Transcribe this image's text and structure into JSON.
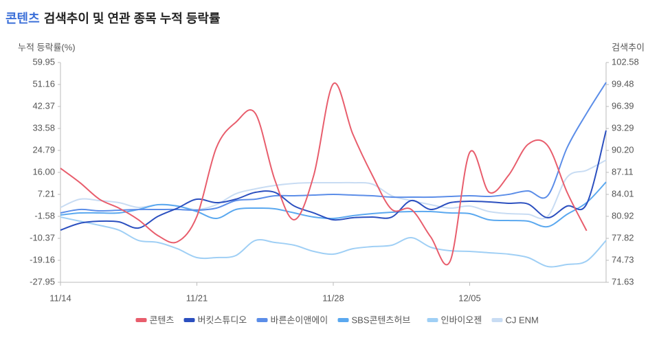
{
  "chart_data": {
    "type": "line",
    "title_keyword": "콘텐츠",
    "title": "검색추이 및 연관 종목 누적 등락률",
    "y_label": "누적 등락률(%)",
    "y2_label": "검색추이",
    "categories": [
      "11/14",
      null,
      null,
      null,
      null,
      null,
      null,
      "11/21",
      null,
      null,
      null,
      null,
      null,
      null,
      "11/28",
      null,
      null,
      null,
      null,
      null,
      null,
      "12/05",
      null,
      null,
      null,
      null,
      null,
      null,
      null
    ],
    "ylim": [
      -27.95,
      59.95
    ],
    "yticks": [
      59.95,
      51.16,
      42.37,
      33.58,
      24.79,
      {
        "value": 16,
        "label": "16.00"
      },
      7.21,
      -1.58,
      -10.37,
      -19.16,
      -27.95
    ],
    "y2lim": [
      71.63,
      102.58
    ],
    "y2ticks": [
      102.58,
      99.48,
      96.39,
      93.29,
      {
        "value": 90.2,
        "label": "90.20"
      },
      87.11,
      84.01,
      80.92,
      77.82,
      74.73,
      71.63
    ],
    "series": [
      {
        "name": "콘텐츠",
        "color": "#e85d6c",
        "axis": "y2",
        "values": [
          87.69,
          85.66,
          83.33,
          82.08,
          80.44,
          78.21,
          77.34,
          80.92,
          90.59,
          94.17,
          95.42,
          86.05,
          80.44,
          86.72,
          99.58,
          92.52,
          86.72,
          81.89,
          81.89,
          78.02,
          74.63,
          89.91,
          84.3,
          86.72,
          91.07,
          90.88,
          84.3,
          78.89,
          null
        ]
      },
      {
        "name": "버킷스튜디오",
        "color": "#2b4fbf",
        "values": [
          -7.08,
          -4.33,
          -3.51,
          -3.78,
          -6.25,
          -1.58,
          1.71,
          5.28,
          3.91,
          5.28,
          8.03,
          8.03,
          2.54,
          -0.21,
          -2.96,
          -2.13,
          -1.86,
          -1.86,
          4.74,
          1.17,
          3.91,
          4.46,
          4.19,
          3.64,
          3.36,
          -2.13,
          2.54,
          3.36,
          32.75
        ]
      },
      {
        "name": "바른손이앤에이",
        "color": "#5b8de8",
        "values": [
          -0.21,
          1.17,
          0.62,
          0.89,
          1.17,
          1.17,
          1.17,
          0.89,
          1.71,
          4.74,
          5.28,
          6.66,
          6.66,
          6.93,
          7.21,
          6.93,
          6.66,
          6.11,
          6.11,
          6.11,
          6.38,
          6.66,
          6.38,
          7.21,
          8.58,
          6.66,
          25.89,
          39.62,
          51.98
        ]
      },
      {
        "name": "SBS콘텐츠허브",
        "color": "#5aa8ef",
        "values": [
          -1.03,
          -0.21,
          -0.21,
          -0.21,
          1.17,
          3.09,
          2.54,
          0.34,
          -2.41,
          1.17,
          1.71,
          1.44,
          -0.21,
          -1.86,
          -2.41,
          -1.31,
          -0.49,
          0.07,
          0.34,
          0.34,
          -0.21,
          -0.49,
          -2.96,
          -3.23,
          -3.51,
          -5.71,
          -0.76,
          3.91,
          12.15
        ]
      },
      {
        "name": "인바이오젠",
        "color": "#9fcff5",
        "values": [
          -1.86,
          -3.51,
          -5.16,
          -7.08,
          -11.2,
          -12.02,
          -14.52,
          -18.06,
          -18.06,
          -17.24,
          -11.2,
          -12.02,
          -13.12,
          -15.59,
          -16.69,
          -14.52,
          -13.67,
          -13.12,
          -10.1,
          -13.94,
          -15.32,
          -15.59,
          -16.14,
          -16.69,
          -18.06,
          -21.63,
          -20.81,
          -19.44,
          -11.2
        ]
      },
      {
        "name": "CJ ENM",
        "color": "#c8dcf3",
        "values": [
          1.99,
          5.28,
          4.74,
          3.91,
          1.99,
          3.09,
          2.54,
          1.17,
          3.09,
          7.48,
          9.4,
          10.78,
          11.6,
          11.87,
          11.87,
          11.87,
          11.33,
          6.66,
          4.74,
          3.09,
          1.71,
          2.54,
          0.34,
          -0.49,
          -0.76,
          -1.58,
          14.08,
          16.82,
          20.94
        ]
      }
    ]
  }
}
